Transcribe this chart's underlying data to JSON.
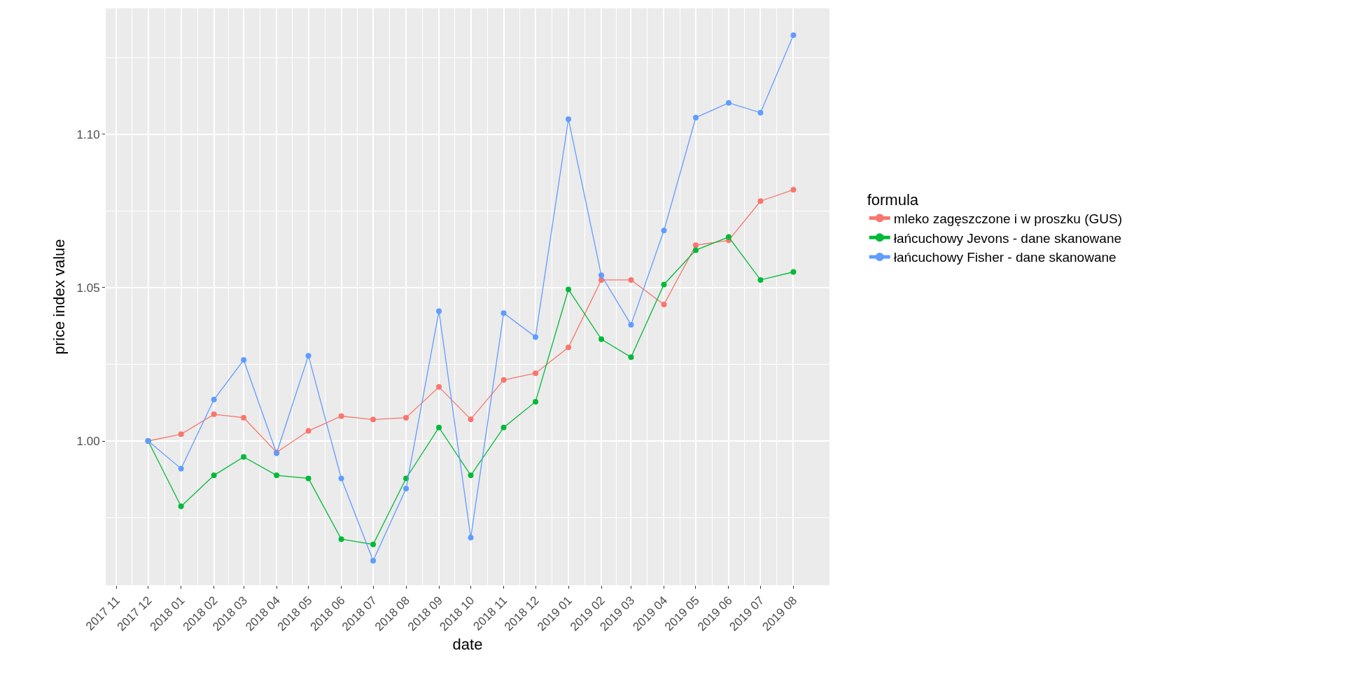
{
  "chart_data": {
    "type": "line",
    "xlabel": "date",
    "ylabel": "price index value",
    "legend_title": "formula",
    "x": [
      "2017-12",
      "2018-01",
      "2018-02",
      "2018-03",
      "2018-04",
      "2018-05",
      "2018-06",
      "2018-07",
      "2018-08",
      "2018-09",
      "2018-10",
      "2018-11",
      "2018-12",
      "2019-01",
      "2019-02",
      "2019-03",
      "2019-04",
      "2019-05",
      "2019-06",
      "2019-07",
      "2019-08"
    ],
    "series": [
      {
        "name": "mleko zagęszczone i w proszku (GUS)",
        "color": "#f8766d",
        "values": [
          1.0,
          1.0022,
          1.0087,
          1.0076,
          0.9963,
          1.0033,
          1.0081,
          1.007,
          1.0076,
          1.0176,
          1.0071,
          1.0199,
          1.0221,
          1.0305,
          1.0525,
          1.0525,
          1.0445,
          1.0638,
          1.0654,
          1.0782,
          1.0819
        ]
      },
      {
        "name": "łańcuchowy Jevons - dane skanowane",
        "color": "#00ba38",
        "values": [
          1.0,
          0.9787,
          0.9888,
          0.9948,
          0.9888,
          0.9878,
          0.968,
          0.9663,
          0.9878,
          1.0044,
          0.9888,
          1.0044,
          1.0128,
          1.0494,
          1.0332,
          1.0273,
          1.051,
          1.0622,
          1.0665,
          1.0525,
          1.0551
        ]
      },
      {
        "name": "łańcuchowy Fisher - dane skanowane",
        "color": "#619cff",
        "values": [
          1.0,
          0.991,
          1.0135,
          1.0264,
          0.996,
          1.0278,
          0.9878,
          0.961,
          0.9845,
          1.0423,
          0.9685,
          1.0417,
          1.0339,
          1.1049,
          1.054,
          1.0379,
          1.0686,
          1.1054,
          1.1102,
          1.107,
          1.1323
        ]
      }
    ],
    "xlim": [
      "2017-10-22",
      "2019-09-04"
    ],
    "xticks": [
      {
        "value": "2017-11",
        "label": "2017 11"
      },
      {
        "value": "2017-12",
        "label": "2017 12"
      },
      {
        "value": "2018-01",
        "label": "2018 01"
      },
      {
        "value": "2018-02",
        "label": "2018 02"
      },
      {
        "value": "2018-03",
        "label": "2018 03"
      },
      {
        "value": "2018-04",
        "label": "2018 04"
      },
      {
        "value": "2018-05",
        "label": "2018 05"
      },
      {
        "value": "2018-06",
        "label": "2018 06"
      },
      {
        "value": "2018-07",
        "label": "2018 07"
      },
      {
        "value": "2018-08",
        "label": "2018 08"
      },
      {
        "value": "2018-09",
        "label": "2018 09"
      },
      {
        "value": "2018-10",
        "label": "2018 10"
      },
      {
        "value": "2018-11",
        "label": "2018 11"
      },
      {
        "value": "2018-12",
        "label": "2018 12"
      },
      {
        "value": "2019-01",
        "label": "2019 01"
      },
      {
        "value": "2019-02",
        "label": "2019 02"
      },
      {
        "value": "2019-03",
        "label": "2019 03"
      },
      {
        "value": "2019-04",
        "label": "2019 04"
      },
      {
        "value": "2019-05",
        "label": "2019 05"
      },
      {
        "value": "2019-06",
        "label": "2019 06"
      },
      {
        "value": "2019-07",
        "label": "2019 07"
      },
      {
        "value": "2019-08",
        "label": "2019 08"
      }
    ],
    "ylim": [
      0.953,
      1.141
    ],
    "yticks": [
      {
        "value": 1.0,
        "label": "1.00"
      },
      {
        "value": 1.05,
        "label": "1.05"
      },
      {
        "value": 1.1,
        "label": "1.10"
      }
    ],
    "grid": true,
    "legend": "right",
    "marker": "circle",
    "line_style": "solid"
  }
}
